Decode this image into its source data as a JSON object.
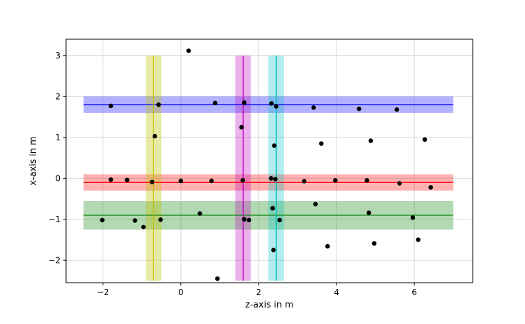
{
  "chart_data": {
    "type": "scatter",
    "title": "",
    "xlabel": "z-axis in m",
    "ylabel": "x-axis in m",
    "xlim": [
      -2.95,
      7.5
    ],
    "ylim": [
      -2.55,
      3.4
    ],
    "xticks": [
      -2,
      0,
      2,
      4,
      6
    ],
    "yticks": [
      -2,
      -1,
      0,
      1,
      2,
      3
    ],
    "xtick_labels": [
      "−2",
      "0",
      "2",
      "4",
      "6"
    ],
    "ytick_labels": [
      "−2",
      "−1",
      "0",
      "1",
      "2",
      "3"
    ],
    "grid": true,
    "legend": "none",
    "points": [
      {
        "x": -2.02,
        "y": -1.02
      },
      {
        "x": -1.8,
        "y": 1.77
      },
      {
        "x": -1.8,
        "y": -0.03
      },
      {
        "x": -1.38,
        "y": -0.04
      },
      {
        "x": -1.18,
        "y": -1.03
      },
      {
        "x": -0.96,
        "y": -1.19
      },
      {
        "x": -0.74,
        "y": -0.09
      },
      {
        "x": -0.67,
        "y": 1.03
      },
      {
        "x": -0.57,
        "y": 1.8
      },
      {
        "x": -0.52,
        "y": -1.01
      },
      {
        "x": 0.0,
        "y": -0.06
      },
      {
        "x": 0.2,
        "y": 3.12
      },
      {
        "x": 0.49,
        "y": -0.86
      },
      {
        "x": 0.79,
        "y": -0.06
      },
      {
        "x": 0.88,
        "y": 1.84
      },
      {
        "x": 0.94,
        "y": -2.45
      },
      {
        "x": 1.56,
        "y": 1.25
      },
      {
        "x": 1.59,
        "y": -0.05
      },
      {
        "x": 1.63,
        "y": 1.85
      },
      {
        "x": 1.63,
        "y": -1.0
      },
      {
        "x": 1.75,
        "y": -1.02
      },
      {
        "x": 2.32,
        "y": 0.0
      },
      {
        "x": 2.33,
        "y": 1.83
      },
      {
        "x": 2.36,
        "y": -0.73
      },
      {
        "x": 2.38,
        "y": -1.75
      },
      {
        "x": 2.4,
        "y": 0.8
      },
      {
        "x": 2.43,
        "y": -0.02
      },
      {
        "x": 2.45,
        "y": 1.76
      },
      {
        "x": 2.54,
        "y": -1.02
      },
      {
        "x": 3.17,
        "y": -0.07
      },
      {
        "x": 3.41,
        "y": 1.73
      },
      {
        "x": 3.46,
        "y": -0.63
      },
      {
        "x": 3.61,
        "y": 0.85
      },
      {
        "x": 3.77,
        "y": -1.66
      },
      {
        "x": 3.97,
        "y": -0.05
      },
      {
        "x": 4.58,
        "y": 1.7
      },
      {
        "x": 4.78,
        "y": -0.05
      },
      {
        "x": 4.83,
        "y": -0.84
      },
      {
        "x": 4.88,
        "y": 0.92
      },
      {
        "x": 4.97,
        "y": -1.59
      },
      {
        "x": 5.55,
        "y": 1.68
      },
      {
        "x": 5.62,
        "y": -0.12
      },
      {
        "x": 5.96,
        "y": -0.96
      },
      {
        "x": 6.1,
        "y": -1.5
      },
      {
        "x": 6.27,
        "y": 0.95
      },
      {
        "x": 6.42,
        "y": -0.22
      }
    ],
    "horizontal_bands": [
      {
        "y": 1.8,
        "y_low": 1.6,
        "y_high": 2.0,
        "x_start": -2.5,
        "x_end": 7.0,
        "line_color": "#0000ff",
        "band_color": "#0000ff",
        "band_opacity": 0.3
      },
      {
        "y": -0.1,
        "y_low": -0.3,
        "y_high": 0.1,
        "x_start": -2.5,
        "x_end": 7.0,
        "line_color": "#ff0000",
        "band_color": "#ff0000",
        "band_opacity": 0.3
      },
      {
        "y": -0.9,
        "y_low": -1.25,
        "y_high": -0.55,
        "x_start": -2.5,
        "x_end": 7.0,
        "line_color": "#008000",
        "band_color": "#008000",
        "band_opacity": 0.3
      }
    ],
    "vertical_bands": [
      {
        "x": -0.7,
        "x_low": -0.9,
        "x_high": -0.5,
        "y_start": -2.5,
        "y_end": 3.0,
        "line_color": "#bfbf00",
        "band_color": "#bfbf00",
        "band_opacity": 0.35
      },
      {
        "x": 1.6,
        "x_low": 1.4,
        "x_high": 1.8,
        "y_start": -2.5,
        "y_end": 3.0,
        "line_color": "#bf00bf",
        "band_color": "#bf00bf",
        "band_opacity": 0.3
      },
      {
        "x": 2.45,
        "x_low": 2.25,
        "x_high": 2.65,
        "y_start": -2.5,
        "y_end": 3.0,
        "line_color": "#00bfbf",
        "band_color": "#00bfbf",
        "band_opacity": 0.3
      }
    ]
  }
}
